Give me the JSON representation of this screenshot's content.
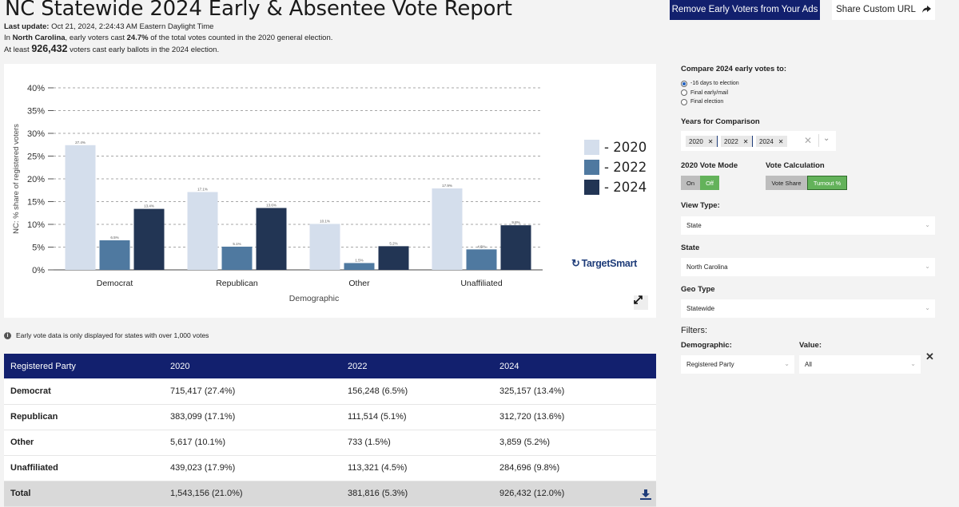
{
  "header": {
    "title": "NC Statewide 2024 Early & Absentee Vote Report",
    "last_update_label": "Last update:",
    "last_update_value": "Oct 21, 2024, 2:24:43 AM Eastern Daylight Time",
    "line2_prefix": "In ",
    "line2_state": "North Carolina",
    "line2_mid": ", early voters cast ",
    "line2_pct": "24.7%",
    "line2_suffix": " of the total votes counted in the 2020 general election.",
    "line3_prefix": "At least ",
    "line3_count": "926,432",
    "line3_suffix": " voters cast early ballots in the 2024 election."
  },
  "buttons": {
    "remove_label": "Remove Early Voters from Your Ads",
    "share_label": "Share Custom URL",
    "share_icon": "share-arrow-icon"
  },
  "chart_data": {
    "type": "bar",
    "title": "",
    "xlabel": "Demographic",
    "ylabel": "NC: % share of registered voters",
    "ylim": [
      0,
      40
    ],
    "yticks": [
      "0%",
      "5%",
      "10%",
      "15%",
      "20%",
      "25%",
      "30%",
      "35%",
      "40%"
    ],
    "categories": [
      "Democrat",
      "Republican",
      "Other",
      "Unaffiliated"
    ],
    "series": [
      {
        "name": "2020",
        "color": "#d4deec",
        "values": [
          27.4,
          17.1,
          10.1,
          17.9
        ],
        "labels": [
          "27.4%",
          "17.1%",
          "10.1%",
          "17.9%"
        ]
      },
      {
        "name": "2022",
        "color": "#4f79a0",
        "values": [
          6.5,
          5.1,
          1.5,
          4.5
        ],
        "labels": [
          "6.5%",
          "5.1%",
          "1.5%",
          "4.5%"
        ]
      },
      {
        "name": "2024",
        "color": "#223554",
        "values": [
          13.4,
          13.6,
          5.2,
          9.8
        ],
        "labels": [
          "13.4%",
          "13.6%",
          "5.2%",
          "9.8%"
        ]
      }
    ],
    "legend_labels": [
      "- 2020",
      "- 2022",
      "- 2024"
    ],
    "grid": true,
    "legend_position": "right"
  },
  "chart_extra": {
    "brand": "TargetSmart",
    "expand_icon": "expand-icon"
  },
  "note": "Early vote data is only displayed for states with over 1,000 votes",
  "table": {
    "headers": [
      "Registered Party",
      "2020",
      "2022",
      "2024"
    ],
    "rows": [
      [
        "Democrat",
        "715,417 (27.4%)",
        "156,248 (6.5%)",
        "325,157 (13.4%)"
      ],
      [
        "Republican",
        "383,099 (17.1%)",
        "111,514 (5.1%)",
        "312,720 (13.6%)"
      ],
      [
        "Other",
        "5,617 (10.1%)",
        "733 (1.5%)",
        "3,859 (5.2%)"
      ],
      [
        "Unaffiliated",
        "439,023 (17.9%)",
        "113,321 (4.5%)",
        "284,696 (9.8%)"
      ]
    ],
    "total": [
      "Total",
      "1,543,156 (21.0%)",
      "381,816 (5.3%)",
      "926,432 (12.0%)"
    ],
    "download_icon": "download-icon"
  },
  "sidebar": {
    "compare_heading": "Compare 2024 early votes to:",
    "compare_options": [
      "-16 days to election",
      "Final early/mail",
      "Final election"
    ],
    "compare_selected": 0,
    "years_heading": "Years for Comparison",
    "years": [
      "2020",
      "2022",
      "2024"
    ],
    "vote_mode_heading": "2020 Vote Mode",
    "vote_mode_on": "On",
    "vote_mode_off": "Off",
    "vote_calc_heading": "Vote Calculation",
    "vote_calc_share": "Vote Share",
    "vote_calc_turnout": "Turnout %",
    "view_type_heading": "View Type:",
    "view_type_value": "State",
    "state_heading": "State",
    "state_value": "North Carolina",
    "geo_type_heading": "Geo Type",
    "geo_type_value": "Statewide",
    "filters_heading": "Filters:",
    "demographic_heading": "Demographic:",
    "demographic_value": "Registered Party",
    "value_heading": "Value:",
    "value_value": "All"
  }
}
